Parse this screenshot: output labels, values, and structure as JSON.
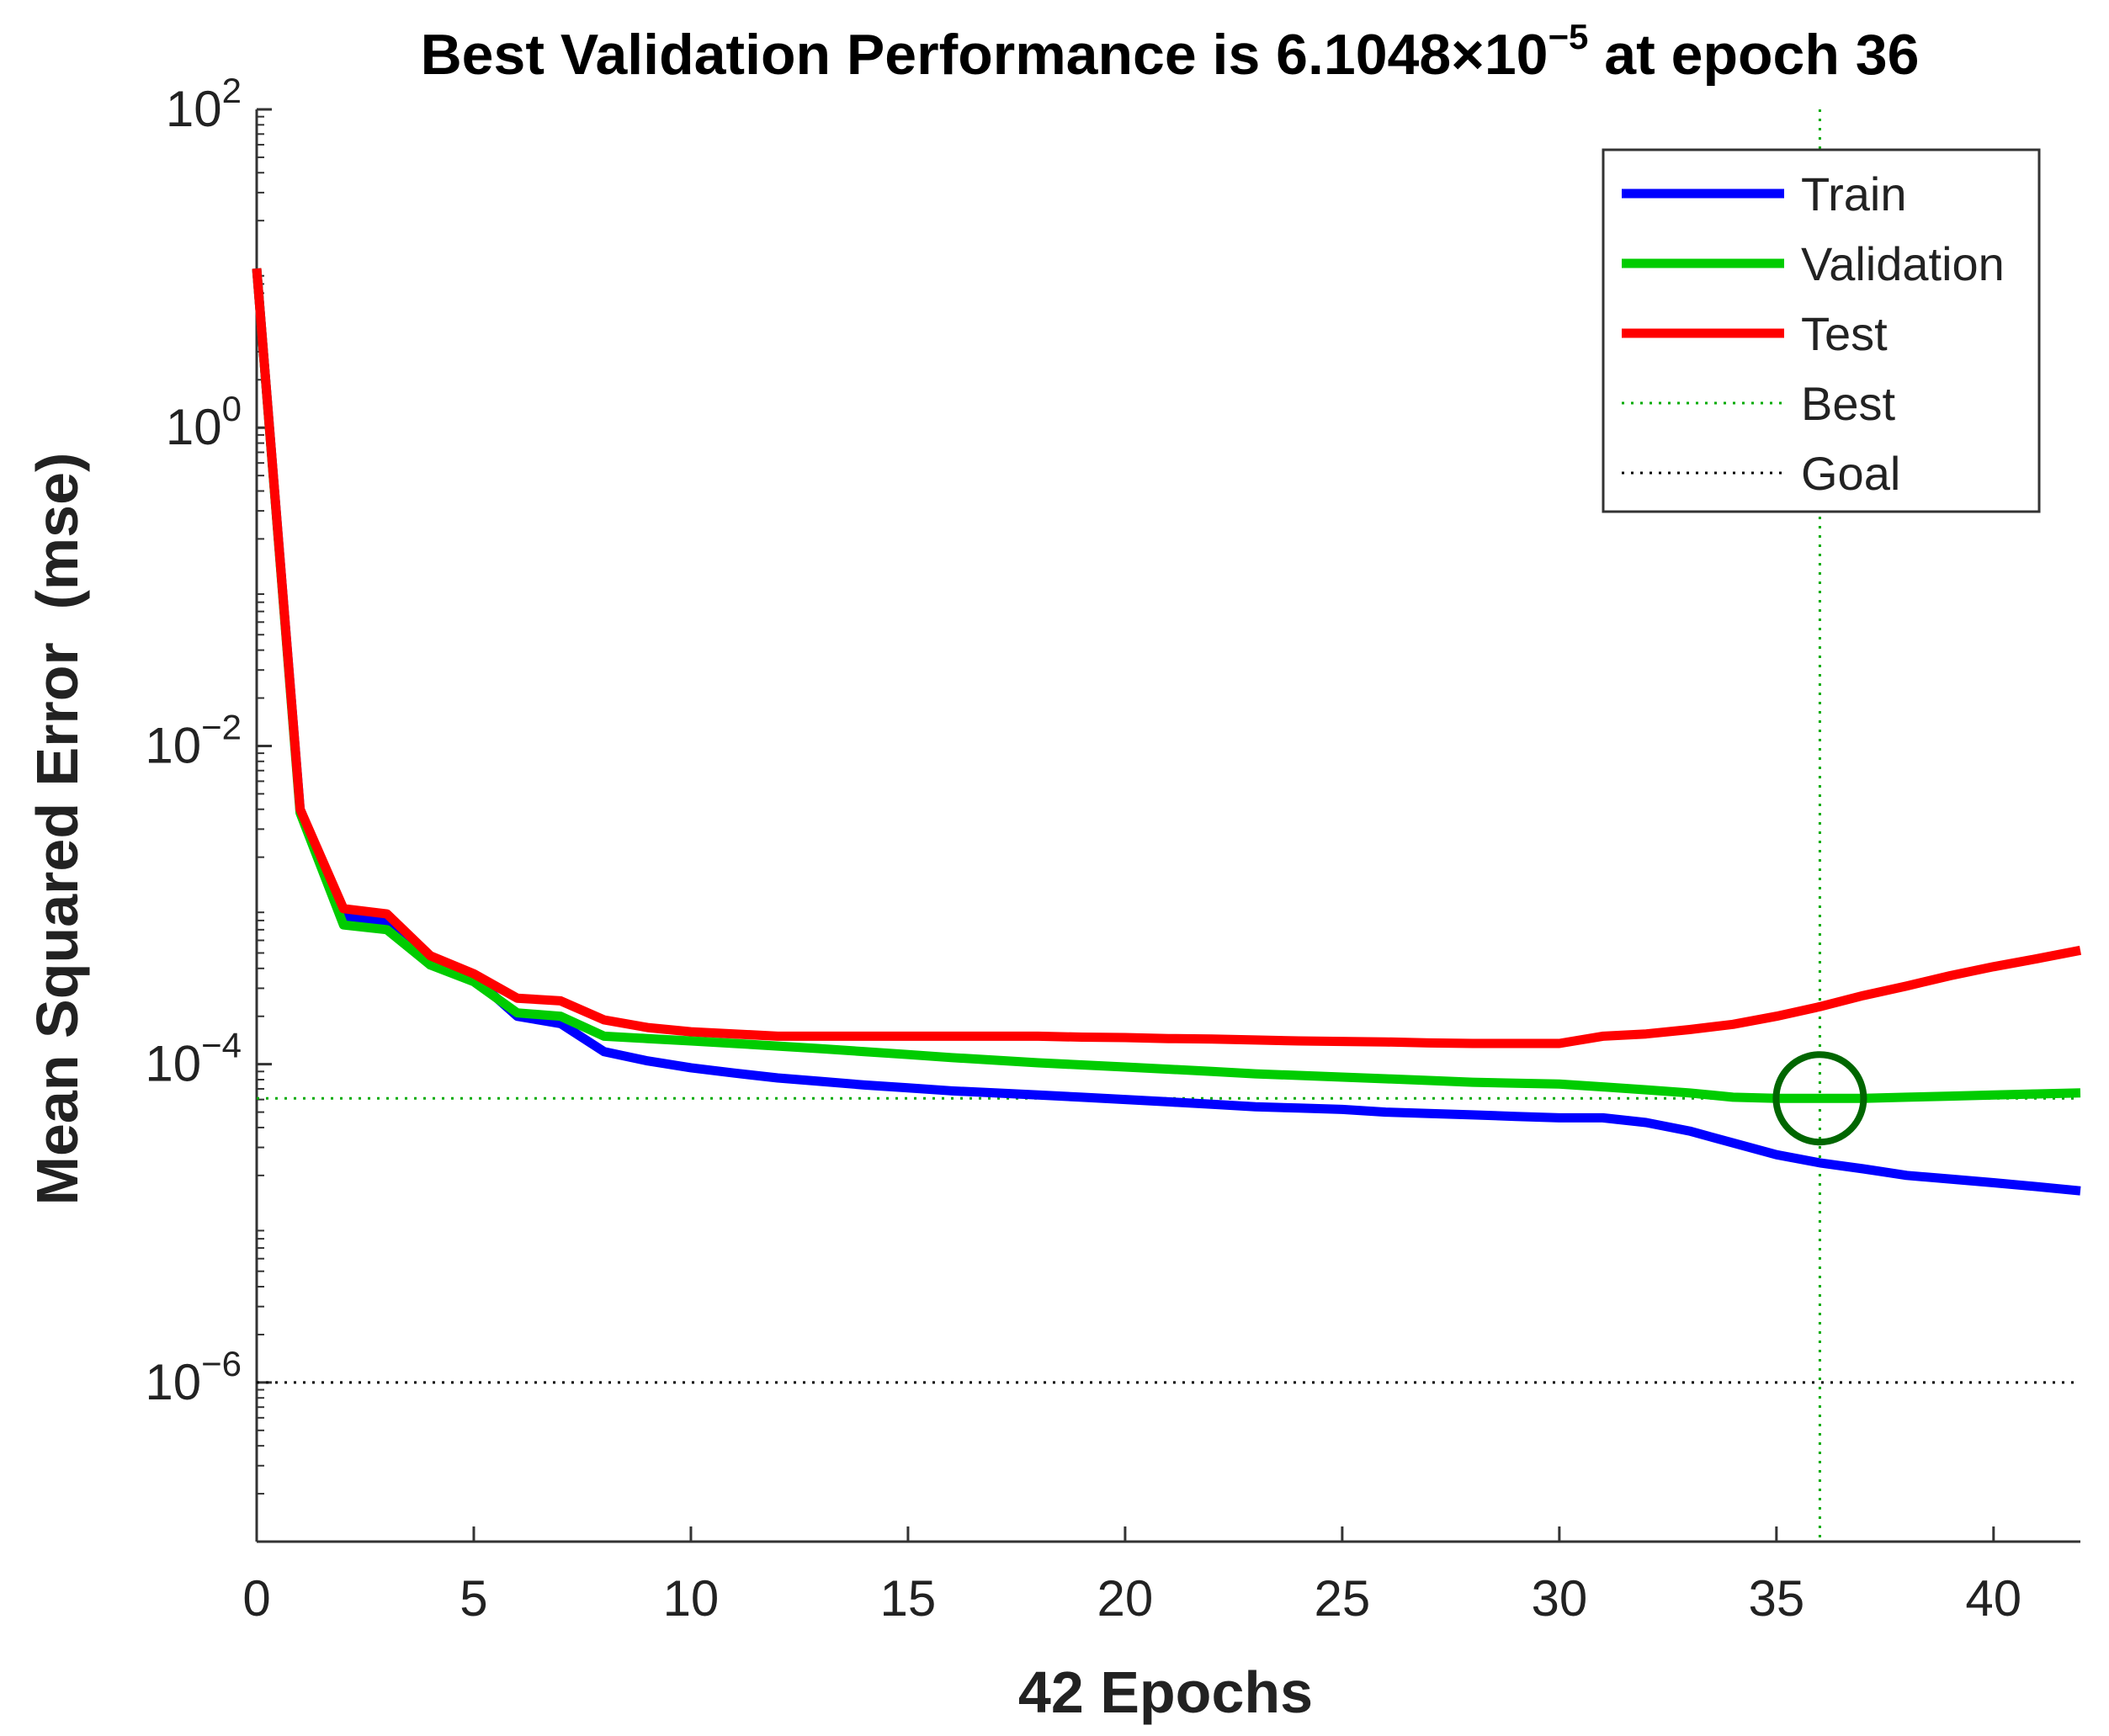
{
  "chart_data": {
    "type": "line",
    "title": {
      "text": "Best Validation Performance is 6.1048×10",
      "exponent": "−5",
      "suffix": " at epoch 36"
    },
    "xlabel": "42 Epochs",
    "ylabel": "Mean Squared Error  (mse)",
    "xlim": [
      0,
      42
    ],
    "ylim": [
      1e-07,
      100
    ],
    "y_scale": "log",
    "x_ticks": [
      0,
      5,
      10,
      15,
      20,
      25,
      30,
      35,
      40
    ],
    "y_ticks": [
      {
        "value": 100,
        "base": "10",
        "exp": "2"
      },
      {
        "value": 1,
        "base": "10",
        "exp": "0"
      },
      {
        "value": 0.01,
        "base": "10",
        "exp": "−2"
      },
      {
        "value": 0.0001,
        "base": "10",
        "exp": "−4"
      },
      {
        "value": 1e-06,
        "base": "10",
        "exp": "−6"
      }
    ],
    "x": [
      0,
      1,
      2,
      3,
      4,
      5,
      6,
      7,
      8,
      9,
      10,
      11,
      12,
      13,
      14,
      15,
      16,
      17,
      18,
      19,
      20,
      21,
      22,
      23,
      24,
      25,
      26,
      27,
      28,
      29,
      30,
      31,
      32,
      33,
      34,
      35,
      36,
      37,
      38,
      39,
      40,
      41,
      42
    ],
    "series": [
      {
        "name": "Train",
        "color": "#0000ff",
        "values": [
          10,
          0.004,
          0.00085,
          0.00078,
          0.00045,
          0.00035,
          0.0002,
          0.00018,
          0.00012,
          0.000105,
          9.5e-05,
          8.8e-05,
          8.2e-05,
          7.8e-05,
          7.4e-05,
          7.1e-05,
          6.8e-05,
          6.6e-05,
          6.4e-05,
          6.2e-05,
          6e-05,
          5.8e-05,
          5.6e-05,
          5.4e-05,
          5.3e-05,
          5.2e-05,
          5e-05,
          4.9e-05,
          4.8e-05,
          4.7e-05,
          4.6e-05,
          4.6e-05,
          4.3e-05,
          3.8e-05,
          3.2e-05,
          2.7e-05,
          2.4e-05,
          2.2e-05,
          2e-05,
          1.9e-05,
          1.8e-05,
          1.7e-05,
          1.6e-05
        ]
      },
      {
        "name": "Validation",
        "color": "#00cc00",
        "values": [
          10,
          0.0038,
          0.00075,
          0.0007,
          0.00042,
          0.00033,
          0.00021,
          0.0002,
          0.00015,
          0.000145,
          0.00014,
          0.000135,
          0.00013,
          0.000125,
          0.00012,
          0.000115,
          0.00011,
          0.000106,
          0.000102,
          9.9e-05,
          9.6e-05,
          9.3e-05,
          9e-05,
          8.7e-05,
          8.5e-05,
          8.3e-05,
          8.1e-05,
          7.9e-05,
          7.7e-05,
          7.6e-05,
          7.5e-05,
          7.2e-05,
          6.9e-05,
          6.6e-05,
          6.2e-05,
          6.1e-05,
          6.1048e-05,
          6.1e-05,
          6.2e-05,
          6.3e-05,
          6.4e-05,
          6.5e-05,
          6.6e-05
        ]
      },
      {
        "name": "Test",
        "color": "#ff0000",
        "values": [
          10,
          0.004,
          0.00095,
          0.00088,
          0.00048,
          0.00037,
          0.00026,
          0.00025,
          0.00019,
          0.00017,
          0.00016,
          0.000155,
          0.00015,
          0.00015,
          0.00015,
          0.00015,
          0.00015,
          0.00015,
          0.00015,
          0.000148,
          0.000147,
          0.000145,
          0.000144,
          0.000142,
          0.00014,
          0.000139,
          0.000138,
          0.000136,
          0.000135,
          0.000135,
          0.000135,
          0.00015,
          0.000155,
          0.000165,
          0.000178,
          0.0002,
          0.00023,
          0.00027,
          0.00031,
          0.00036,
          0.00041,
          0.00046,
          0.00052
        ]
      }
    ],
    "best": {
      "epoch": 36,
      "value": 6.1048e-05,
      "color": "#00aa00"
    },
    "goal": {
      "value": 1e-06,
      "color": "#000000"
    },
    "legend": {
      "position": "top-right",
      "entries": [
        {
          "label": "Train",
          "color": "#0000ff",
          "style": "solid"
        },
        {
          "label": "Validation",
          "color": "#00cc00",
          "style": "solid"
        },
        {
          "label": "Test",
          "color": "#ff0000",
          "style": "solid"
        },
        {
          "label": "Best",
          "color": "#00aa00",
          "style": "dotted"
        },
        {
          "label": "Goal",
          "color": "#000000",
          "style": "dotted"
        }
      ]
    },
    "grid": false
  }
}
